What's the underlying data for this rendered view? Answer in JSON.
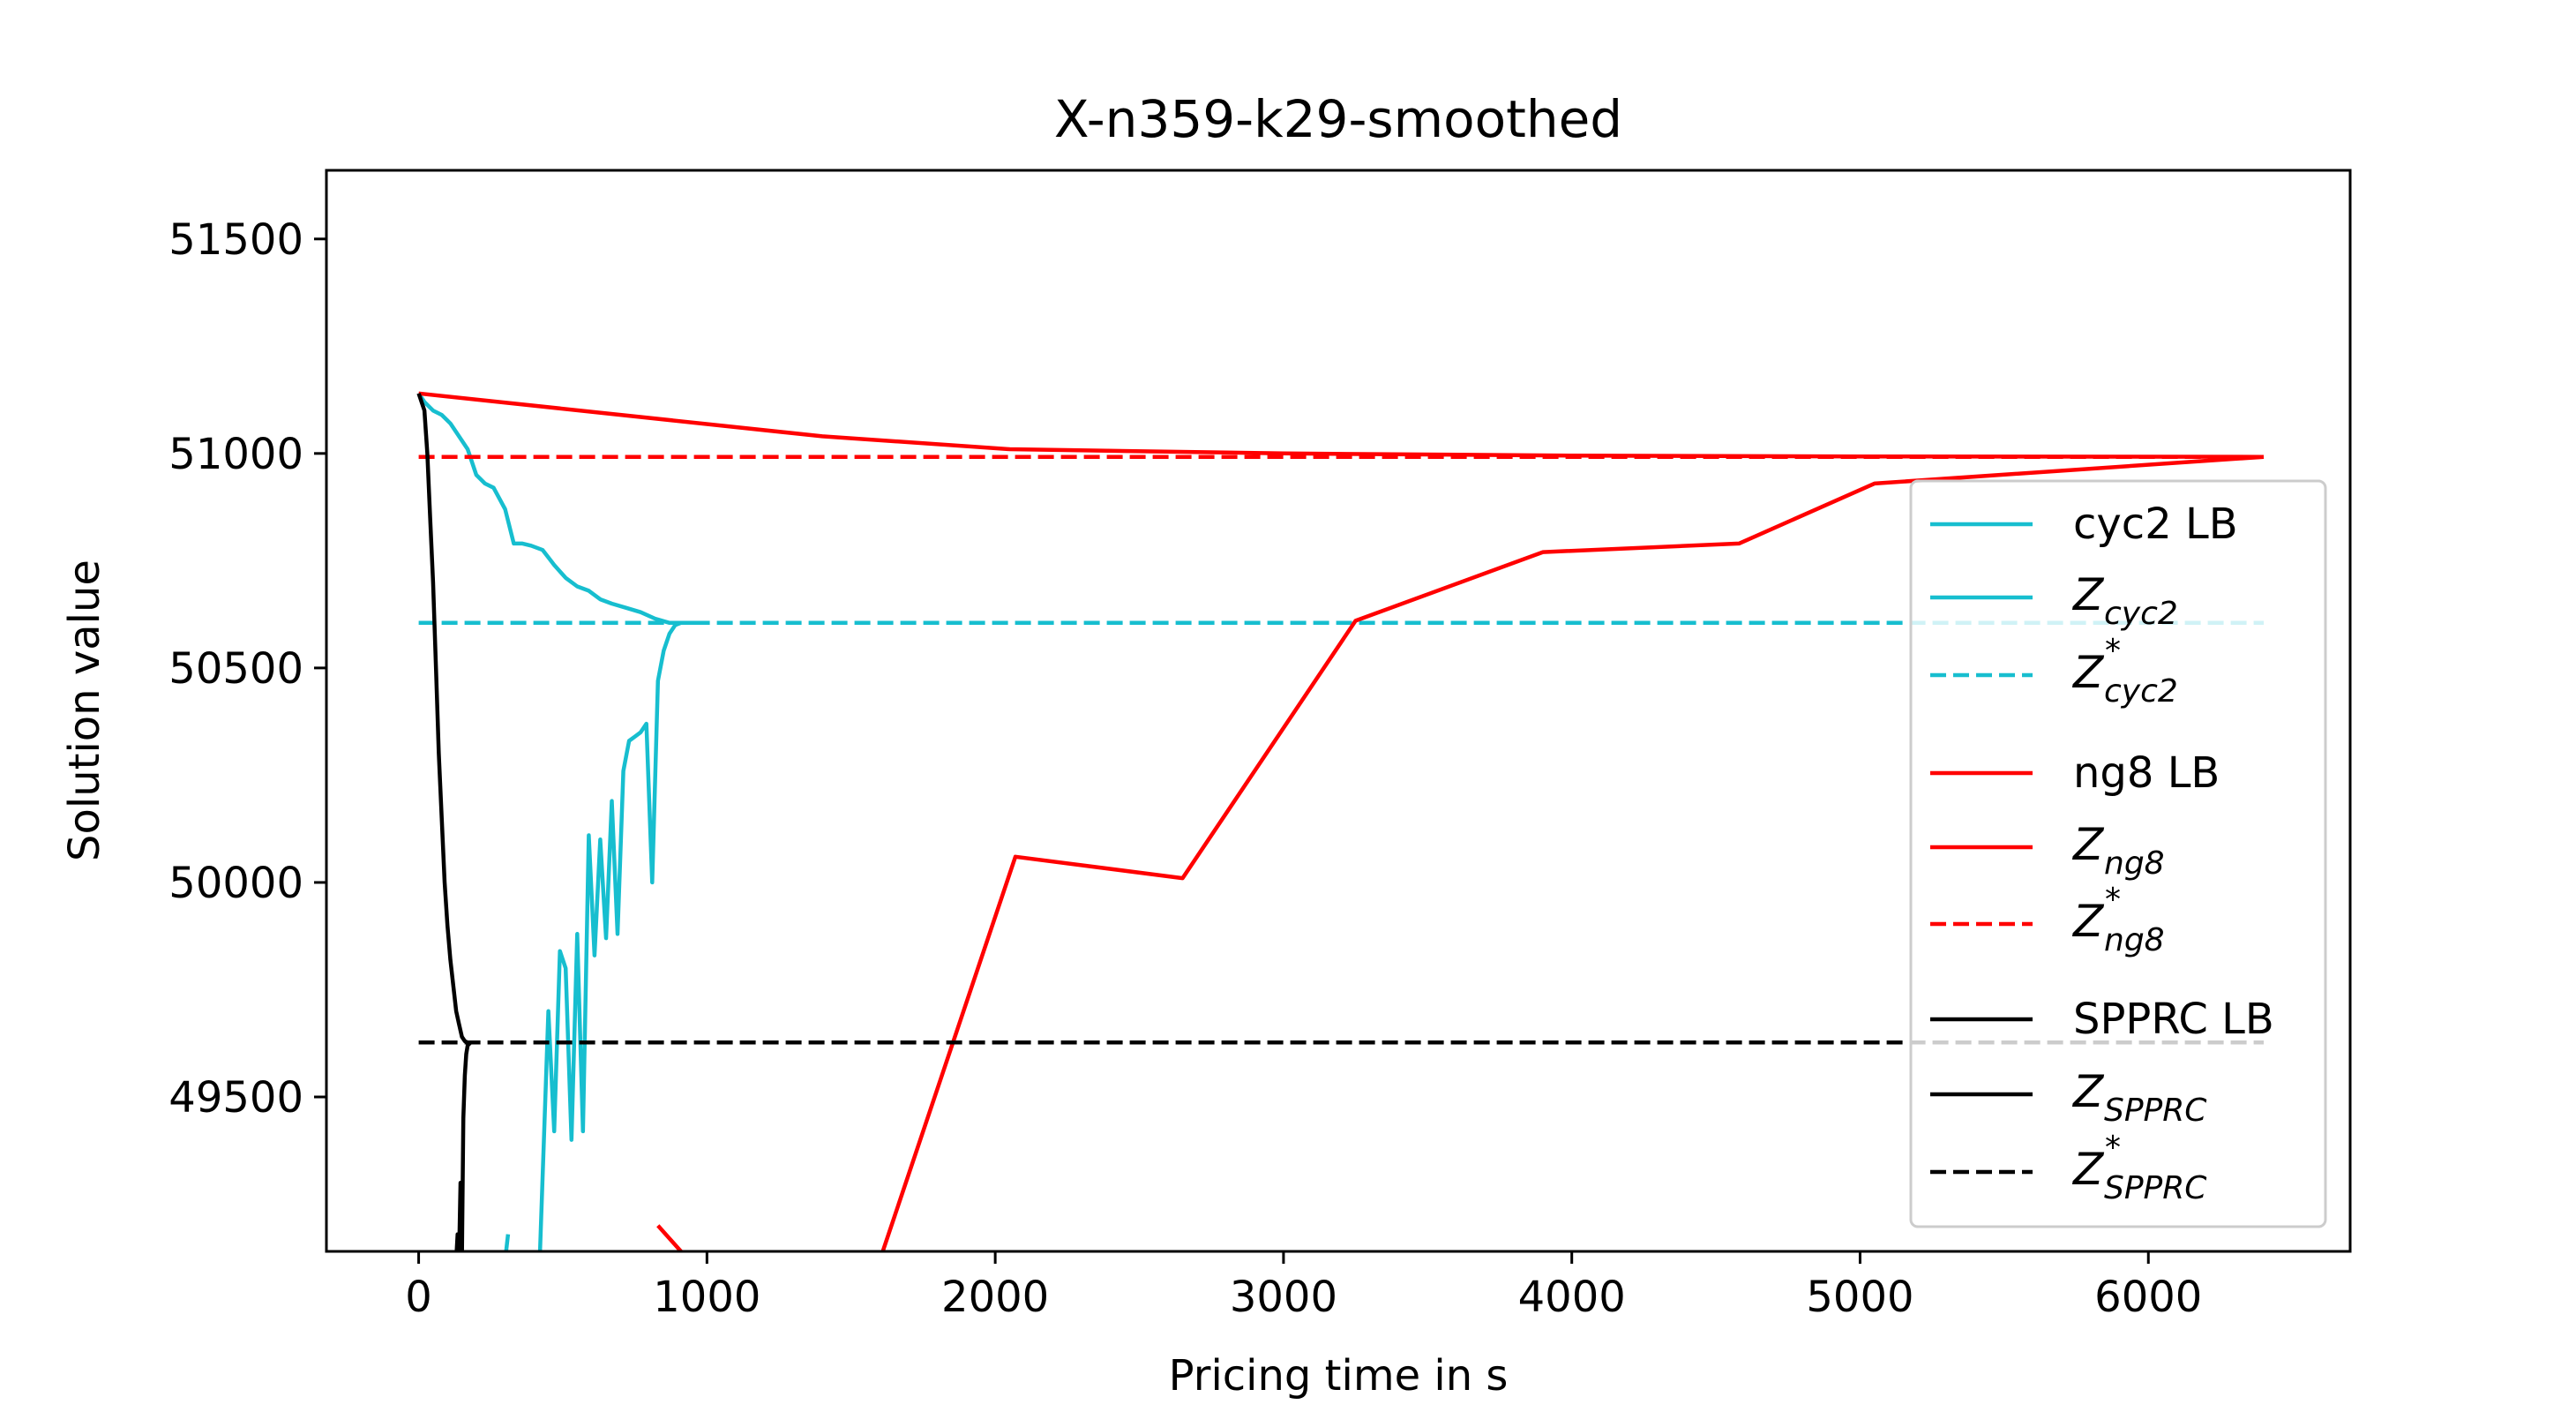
{
  "chart_data": {
    "type": "line",
    "title": "X-n359-k29-smoothed",
    "xlabel": "Pricing time in s",
    "ylabel": "Solution value",
    "xlim": [
      -320,
      6700
    ],
    "ylim": [
      49140,
      51660
    ],
    "xticks": [
      0,
      1000,
      2000,
      3000,
      4000,
      5000,
      6000
    ],
    "yticks": [
      49500,
      50000,
      50500,
      51000,
      51500
    ],
    "grid": false,
    "legend_position": "right",
    "colors": {
      "cyc2": "#17becf",
      "ng8": "#ff0000",
      "spprc": "#000000"
    },
    "series": [
      {
        "name": "cyc2 LB",
        "color": "#17becf",
        "style": "solid",
        "x": [
          0,
          20,
          50,
          80,
          110,
          140,
          170,
          200,
          230,
          260,
          300,
          330,
          360,
          390,
          430,
          470,
          510,
          550,
          590,
          630,
          670,
          720,
          770,
          820,
          870,
          910,
          940,
          970,
          1000
        ],
        "y": [
          51140,
          51120,
          51100,
          51090,
          51070,
          51040,
          51010,
          50950,
          50930,
          50920,
          50870,
          50790,
          50790,
          50785,
          50775,
          50740,
          50710,
          50690,
          50680,
          50660,
          50650,
          50640,
          50630,
          50615,
          50605,
          50605,
          50605,
          50605,
          50605
        ]
      },
      {
        "name": "Z_cyc2",
        "color": "#17becf",
        "style": "solid",
        "segments": [
          {
            "x": [
              300,
              310
            ],
            "y": [
              49120,
              49180
            ]
          },
          {
            "x": [
              420,
              450,
              470,
              490,
              510,
              530,
              550,
              570,
              590,
              610,
              630,
              650,
              670,
              690,
              710,
              730,
              750,
              770,
              790,
              810,
              830,
              850,
              870,
              890,
              910,
              930,
              950
            ],
            "y": [
              49120,
              49700,
              49420,
              49840,
              49800,
              49400,
              49880,
              49420,
              50110,
              49830,
              50100,
              49870,
              50190,
              49880,
              50260,
              50330,
              50340,
              50350,
              50370,
              50000,
              50470,
              50540,
              50580,
              50600,
              50605,
              50605,
              50605
            ]
          }
        ]
      },
      {
        "name": "Z*_cyc2",
        "color": "#17becf",
        "style": "dashed",
        "x": [
          0,
          6400
        ],
        "y": [
          50605,
          50605
        ]
      },
      {
        "name": "ng8 LB",
        "color": "#ff0000",
        "style": "solid",
        "x": [
          0,
          1400,
          2050,
          3000,
          4000,
          5000,
          6400
        ],
        "y": [
          51140,
          51040,
          51010,
          51000,
          50995,
          50993,
          50992
        ]
      },
      {
        "name": "Z_ng8",
        "color": "#ff0000",
        "style": "solid",
        "segments": [
          {
            "x": [
              830,
              950
            ],
            "y": [
              49200,
              49110
            ]
          },
          {
            "x": [
              1600,
              2070,
              2650,
              3250,
              3900,
              4580,
              5050,
              6400
            ],
            "y": [
              49120,
              50060,
              50010,
              50610,
              50770,
              50790,
              50930,
              50992
            ]
          }
        ]
      },
      {
        "name": "Z*_ng8",
        "color": "#ff0000",
        "style": "dashed",
        "x": [
          0,
          6400
        ],
        "y": [
          50992,
          50992
        ]
      },
      {
        "name": "SPPRC LB",
        "color": "#000000",
        "style": "solid",
        "x": [
          0,
          20,
          30,
          40,
          50,
          60,
          70,
          80,
          90,
          100,
          110,
          120,
          130,
          140,
          150,
          160,
          170,
          180
        ],
        "y": [
          51140,
          51100,
          51000,
          50850,
          50700,
          50500,
          50300,
          50150,
          50000,
          49900,
          49820,
          49760,
          49700,
          49670,
          49640,
          49630,
          49627,
          49627
        ]
      },
      {
        "name": "Z_SPPRC",
        "color": "#000000",
        "style": "solid",
        "x": [
          130,
          135,
          140,
          145,
          150,
          155,
          160,
          165,
          170,
          180
        ],
        "y": [
          49120,
          49180,
          49120,
          49300,
          49120,
          49450,
          49550,
          49600,
          49620,
          49627
        ]
      },
      {
        "name": "Z*_SPPRC",
        "color": "#000000",
        "style": "dashed",
        "x": [
          0,
          6400
        ],
        "y": [
          49627,
          49627
        ]
      }
    ],
    "legend": [
      {
        "kind": "text",
        "text": "cyc2 LB",
        "color": "#17becf",
        "style": "solid"
      },
      {
        "kind": "math",
        "base": "Z",
        "sub": "cyc2",
        "sup": "",
        "color": "#17becf",
        "style": "solid"
      },
      {
        "kind": "math",
        "base": "Z",
        "sub": "cyc2",
        "sup": "*",
        "color": "#17becf",
        "style": "dashed"
      },
      {
        "kind": "text",
        "text": "ng8 LB",
        "color": "#ff0000",
        "style": "solid"
      },
      {
        "kind": "math",
        "base": "Z",
        "sub": "ng8",
        "sup": "",
        "color": "#ff0000",
        "style": "solid"
      },
      {
        "kind": "math",
        "base": "Z",
        "sub": "ng8",
        "sup": "*",
        "color": "#ff0000",
        "style": "dashed"
      },
      {
        "kind": "text",
        "text": "SPPRC LB",
        "color": "#000000",
        "style": "solid"
      },
      {
        "kind": "math",
        "base": "Z",
        "sub": "SPPRC",
        "sup": "",
        "color": "#000000",
        "style": "solid"
      },
      {
        "kind": "math",
        "base": "Z",
        "sub": "SPPRC",
        "sup": "*",
        "color": "#000000",
        "style": "dashed"
      }
    ]
  }
}
